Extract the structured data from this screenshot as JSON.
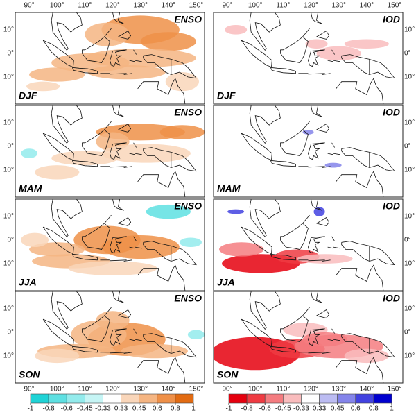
{
  "lon_labels": [
    "90°",
    "100°",
    "110°",
    "120°",
    "130°",
    "140°",
    "150°"
  ],
  "lat_labels": [
    "10°",
    "0°",
    "10°"
  ],
  "indices": [
    "ENSO",
    "IOD"
  ],
  "seasons": [
    "DJF",
    "MAM",
    "JJA",
    "SON"
  ],
  "colorbars": [
    {
      "ticks": [
        -1,
        -0.8,
        -0.6,
        -0.45,
        -0.33,
        0.33,
        0.45,
        0.6,
        0.8,
        1
      ],
      "colors": [
        "#1fd3d6",
        "#5ee0e2",
        "#93ebec",
        "#c6f5f5",
        "#ffffff",
        "#f9d6ba",
        "#f5b582",
        "#ef9048",
        "#e26b12"
      ]
    },
    {
      "ticks": [
        -1,
        -0.8,
        -0.6,
        -0.45,
        -0.33,
        0.33,
        0.45,
        0.6,
        0.8,
        1
      ],
      "colors": [
        "#e5000e",
        "#ef3b42",
        "#f47c80",
        "#f9bcbd",
        "#ffffff",
        "#bcbcf2",
        "#8484ea",
        "#4242e0",
        "#0000cf"
      ]
    }
  ]
}
